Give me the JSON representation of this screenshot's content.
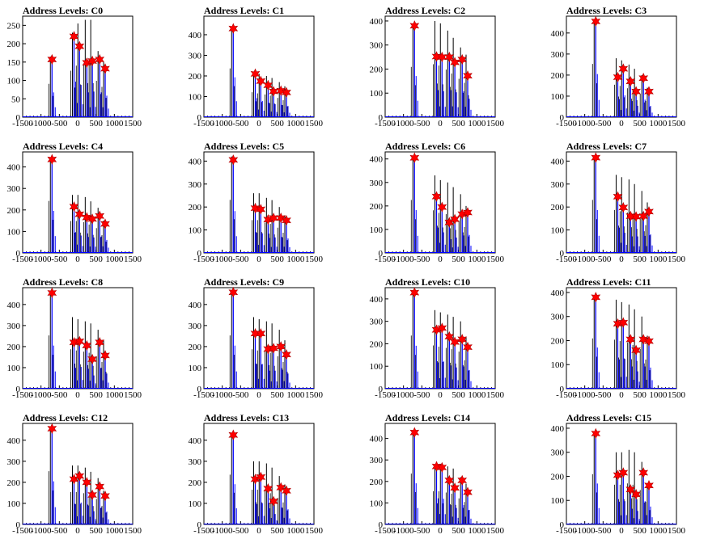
{
  "x_ticks": [
    -1500,
    -1000,
    -500,
    0,
    500,
    1000,
    1500
  ],
  "colors": {
    "black_hist": "#000000",
    "blue_hist": "#0000ff",
    "marker": "#ff0000",
    "frame": "#000000"
  },
  "chart_data": [
    {
      "type": "bar",
      "title": "Address Levels: C0",
      "xlim": [
        -1500,
        1500
      ],
      "ylim": [
        0,
        275
      ],
      "yticks": [
        0,
        50,
        100,
        150,
        200,
        250
      ],
      "peaks_x": [
        -700,
        -100,
        50,
        250,
        400,
        600,
        750
      ],
      "black_heights": [
        165,
        230,
        255,
        265,
        265,
        180,
        150
      ],
      "blue_heights": [
        150,
        215,
        195,
        150,
        155,
        150,
        130
      ],
      "markers": [
        {
          "x": -700,
          "y": 157
        },
        {
          "x": -100,
          "y": 220
        },
        {
          "x": 50,
          "y": 193
        },
        {
          "x": 250,
          "y": 148
        },
        {
          "x": 400,
          "y": 153
        },
        {
          "x": 600,
          "y": 157
        },
        {
          "x": 750,
          "y": 132
        }
      ]
    },
    {
      "type": "bar",
      "title": "Address Levels: C1",
      "xlim": [
        -1500,
        1500
      ],
      "ylim": [
        0,
        490
      ],
      "yticks": [
        0,
        100,
        200,
        300,
        400
      ],
      "peaks_x": [
        -700,
        -100,
        50,
        250,
        400,
        600,
        750
      ],
      "black_heights": [
        430,
        220,
        210,
        200,
        190,
        170,
        150
      ],
      "blue_heights": [
        430,
        205,
        175,
        150,
        140,
        130,
        120
      ],
      "markers": [
        {
          "x": -700,
          "y": 430
        },
        {
          "x": -100,
          "y": 210
        },
        {
          "x": 50,
          "y": 175
        },
        {
          "x": 250,
          "y": 155
        },
        {
          "x": 400,
          "y": 125
        },
        {
          "x": 600,
          "y": 128
        },
        {
          "x": 750,
          "y": 120
        }
      ]
    },
    {
      "type": "bar",
      "title": "Address Levels: C2",
      "xlim": [
        -1500,
        1500
      ],
      "ylim": [
        0,
        420
      ],
      "yticks": [
        0,
        100,
        200,
        300,
        400
      ],
      "peaks_x": [
        -700,
        -100,
        50,
        250,
        400,
        600,
        750
      ],
      "black_heights": [
        380,
        400,
        390,
        360,
        330,
        290,
        260
      ],
      "blue_heights": [
        380,
        250,
        240,
        250,
        230,
        240,
        170
      ],
      "markers": [
        {
          "x": -700,
          "y": 380
        },
        {
          "x": -100,
          "y": 252
        },
        {
          "x": 50,
          "y": 250
        },
        {
          "x": 250,
          "y": 250
        },
        {
          "x": 400,
          "y": 228
        },
        {
          "x": 600,
          "y": 240
        },
        {
          "x": 750,
          "y": 172
        }
      ]
    },
    {
      "type": "bar",
      "title": "Address Levels: C3",
      "xlim": [
        -1500,
        1500
      ],
      "ylim": [
        0,
        480
      ],
      "yticks": [
        0,
        100,
        200,
        300,
        400
      ],
      "peaks_x": [
        -700,
        -100,
        50,
        250,
        400,
        600,
        750
      ],
      "black_heights": [
        460,
        280,
        270,
        250,
        230,
        200,
        140
      ],
      "blue_heights": [
        455,
        190,
        230,
        170,
        120,
        185,
        120
      ],
      "markers": [
        {
          "x": -700,
          "y": 455
        },
        {
          "x": -100,
          "y": 190
        },
        {
          "x": 50,
          "y": 230
        },
        {
          "x": 250,
          "y": 170
        },
        {
          "x": 400,
          "y": 122
        },
        {
          "x": 600,
          "y": 185
        },
        {
          "x": 750,
          "y": 122
        }
      ]
    },
    {
      "type": "bar",
      "title": "Address Levels: C4",
      "xlim": [
        -1500,
        1500
      ],
      "ylim": [
        0,
        470
      ],
      "yticks": [
        0,
        100,
        200,
        300,
        400
      ],
      "peaks_x": [
        -700,
        -100,
        50,
        250,
        400,
        600,
        750
      ],
      "black_heights": [
        440,
        270,
        270,
        260,
        240,
        210,
        150
      ],
      "blue_heights": [
        435,
        215,
        180,
        165,
        160,
        170,
        135
      ],
      "markers": [
        {
          "x": -700,
          "y": 435
        },
        {
          "x": -100,
          "y": 215
        },
        {
          "x": 50,
          "y": 180
        },
        {
          "x": 250,
          "y": 165
        },
        {
          "x": 400,
          "y": 158
        },
        {
          "x": 600,
          "y": 172
        },
        {
          "x": 750,
          "y": 135
        }
      ]
    },
    {
      "type": "bar",
      "title": "Address Levels: C5",
      "xlim": [
        -1500,
        1500
      ],
      "ylim": [
        0,
        440
      ],
      "yticks": [
        0,
        100,
        200,
        300,
        400
      ],
      "peaks_x": [
        -700,
        -100,
        50,
        250,
        400,
        600,
        750
      ],
      "black_heights": [
        420,
        260,
        260,
        240,
        230,
        200,
        160
      ],
      "blue_heights": [
        405,
        195,
        190,
        145,
        150,
        150,
        140
      ],
      "markers": [
        {
          "x": -700,
          "y": 405
        },
        {
          "x": -100,
          "y": 195
        },
        {
          "x": 50,
          "y": 190
        },
        {
          "x": 250,
          "y": 145
        },
        {
          "x": 400,
          "y": 152
        },
        {
          "x": 600,
          "y": 152
        },
        {
          "x": 750,
          "y": 142
        }
      ]
    },
    {
      "type": "bar",
      "title": "Address Levels: C6",
      "xlim": [
        -1500,
        1500
      ],
      "ylim": [
        0,
        430
      ],
      "yticks": [
        0,
        100,
        200,
        300,
        400
      ],
      "peaks_x": [
        -700,
        -100,
        50,
        250,
        400,
        600,
        750
      ],
      "black_heights": [
        410,
        330,
        310,
        300,
        280,
        250,
        200
      ],
      "blue_heights": [
        405,
        240,
        195,
        130,
        145,
        165,
        170
      ],
      "markers": [
        {
          "x": -700,
          "y": 405
        },
        {
          "x": -100,
          "y": 240
        },
        {
          "x": 50,
          "y": 195
        },
        {
          "x": 250,
          "y": 130
        },
        {
          "x": 400,
          "y": 143
        },
        {
          "x": 600,
          "y": 165
        },
        {
          "x": 750,
          "y": 172
        }
      ]
    },
    {
      "type": "bar",
      "title": "Address Levels: C7",
      "xlim": [
        -1500,
        1500
      ],
      "ylim": [
        0,
        440
      ],
      "yticks": [
        0,
        100,
        200,
        300,
        400
      ],
      "peaks_x": [
        -700,
        -100,
        50,
        250,
        400,
        600,
        750
      ],
      "black_heights": [
        420,
        340,
        330,
        320,
        300,
        270,
        220
      ],
      "blue_heights": [
        415,
        245,
        195,
        160,
        160,
        165,
        180
      ],
      "markers": [
        {
          "x": -700,
          "y": 415
        },
        {
          "x": -100,
          "y": 245
        },
        {
          "x": 50,
          "y": 198
        },
        {
          "x": 250,
          "y": 160
        },
        {
          "x": 400,
          "y": 158
        },
        {
          "x": 600,
          "y": 160
        },
        {
          "x": 750,
          "y": 180
        }
      ]
    },
    {
      "type": "bar",
      "title": "Address Levels: C8",
      "xlim": [
        -1500,
        1500
      ],
      "ylim": [
        0,
        480
      ],
      "yticks": [
        0,
        100,
        200,
        300,
        400
      ],
      "peaks_x": [
        -700,
        -100,
        50,
        250,
        400,
        600,
        750
      ],
      "black_heights": [
        460,
        340,
        330,
        320,
        310,
        280,
        230
      ],
      "blue_heights": [
        455,
        220,
        230,
        210,
        140,
        220,
        160
      ],
      "markers": [
        {
          "x": -700,
          "y": 455
        },
        {
          "x": -100,
          "y": 220
        },
        {
          "x": 50,
          "y": 225
        },
        {
          "x": 250,
          "y": 205
        },
        {
          "x": 400,
          "y": 140
        },
        {
          "x": 600,
          "y": 220
        },
        {
          "x": 750,
          "y": 158
        }
      ]
    },
    {
      "type": "bar",
      "title": "Address Levels: C9",
      "xlim": [
        -1500,
        1500
      ],
      "ylim": [
        0,
        480
      ],
      "yticks": [
        0,
        100,
        200,
        300,
        400
      ],
      "peaks_x": [
        -700,
        -100,
        50,
        250,
        400,
        600,
        750
      ],
      "black_heights": [
        460,
        340,
        330,
        320,
        310,
        280,
        230
      ],
      "blue_heights": [
        455,
        260,
        260,
        190,
        190,
        200,
        160
      ],
      "markers": [
        {
          "x": -700,
          "y": 458
        },
        {
          "x": -100,
          "y": 262
        },
        {
          "x": 50,
          "y": 262
        },
        {
          "x": 250,
          "y": 188
        },
        {
          "x": 400,
          "y": 192
        },
        {
          "x": 600,
          "y": 200
        },
        {
          "x": 750,
          "y": 162
        }
      ]
    },
    {
      "type": "bar",
      "title": "Address Levels: C10",
      "xlim": [
        -1500,
        1500
      ],
      "ylim": [
        0,
        450
      ],
      "yticks": [
        0,
        100,
        200,
        300,
        400
      ],
      "peaks_x": [
        -700,
        -100,
        50,
        250,
        400,
        600,
        750
      ],
      "black_heights": [
        430,
        350,
        340,
        330,
        320,
        300,
        230
      ],
      "blue_heights": [
        425,
        260,
        270,
        230,
        210,
        220,
        185
      ],
      "markers": [
        {
          "x": -700,
          "y": 428
        },
        {
          "x": -100,
          "y": 262
        },
        {
          "x": 50,
          "y": 270
        },
        {
          "x": 250,
          "y": 232
        },
        {
          "x": 400,
          "y": 208
        },
        {
          "x": 600,
          "y": 220
        },
        {
          "x": 750,
          "y": 185
        }
      ]
    },
    {
      "type": "bar",
      "title": "Address Levels: C11",
      "xlim": [
        -1500,
        1500
      ],
      "ylim": [
        0,
        420
      ],
      "yticks": [
        0,
        100,
        200,
        300,
        400
      ],
      "peaks_x": [
        -700,
        -100,
        50,
        250,
        400,
        600,
        750
      ],
      "black_heights": [
        380,
        370,
        360,
        350,
        330,
        300,
        220
      ],
      "blue_heights": [
        380,
        270,
        275,
        205,
        160,
        205,
        195
      ],
      "markers": [
        {
          "x": -700,
          "y": 380
        },
        {
          "x": -100,
          "y": 270
        },
        {
          "x": 50,
          "y": 275
        },
        {
          "x": 250,
          "y": 205
        },
        {
          "x": 400,
          "y": 160
        },
        {
          "x": 600,
          "y": 205
        },
        {
          "x": 750,
          "y": 198
        }
      ]
    },
    {
      "type": "bar",
      "title": "Address Levels: C12",
      "xlim": [
        -1500,
        1500
      ],
      "ylim": [
        0,
        480
      ],
      "yticks": [
        0,
        100,
        200,
        300,
        400
      ],
      "peaks_x": [
        -700,
        -100,
        50,
        250,
        400,
        600,
        750
      ],
      "black_heights": [
        460,
        280,
        280,
        270,
        250,
        220,
        160
      ],
      "blue_heights": [
        455,
        215,
        230,
        200,
        140,
        180,
        135
      ],
      "markers": [
        {
          "x": -700,
          "y": 455
        },
        {
          "x": -100,
          "y": 215
        },
        {
          "x": 50,
          "y": 230
        },
        {
          "x": 250,
          "y": 200
        },
        {
          "x": 400,
          "y": 140
        },
        {
          "x": 600,
          "y": 180
        },
        {
          "x": 750,
          "y": 135
        }
      ]
    },
    {
      "type": "bar",
      "title": "Address Levels: C13",
      "xlim": [
        -1500,
        1500
      ],
      "ylim": [
        0,
        480
      ],
      "yticks": [
        0,
        100,
        200,
        300,
        400
      ],
      "peaks_x": [
        -700,
        -100,
        50,
        250,
        400,
        600,
        750
      ],
      "black_heights": [
        430,
        300,
        300,
        290,
        270,
        230,
        190
      ],
      "blue_heights": [
        425,
        215,
        225,
        170,
        110,
        175,
        160
      ],
      "markers": [
        {
          "x": -700,
          "y": 425
        },
        {
          "x": -100,
          "y": 215
        },
        {
          "x": 50,
          "y": 225
        },
        {
          "x": 250,
          "y": 170
        },
        {
          "x": 400,
          "y": 110
        },
        {
          "x": 600,
          "y": 175
        },
        {
          "x": 750,
          "y": 160
        }
      ]
    },
    {
      "type": "bar",
      "title": "Address Levels: C14",
      "xlim": [
        -1500,
        1500
      ],
      "ylim": [
        0,
        470
      ],
      "yticks": [
        0,
        100,
        200,
        300,
        400
      ],
      "peaks_x": [
        -700,
        -100,
        50,
        250,
        400,
        600,
        750
      ],
      "black_heights": [
        430,
        280,
        280,
        270,
        260,
        220,
        190
      ],
      "blue_heights": [
        425,
        270,
        265,
        200,
        170,
        200,
        150
      ],
      "markers": [
        {
          "x": -700,
          "y": 428
        },
        {
          "x": -100,
          "y": 270
        },
        {
          "x": 50,
          "y": 265
        },
        {
          "x": 250,
          "y": 205
        },
        {
          "x": 400,
          "y": 170
        },
        {
          "x": 600,
          "y": 205
        },
        {
          "x": 750,
          "y": 150
        }
      ]
    },
    {
      "type": "bar",
      "title": "Address Levels: C15",
      "xlim": [
        -1500,
        1500
      ],
      "ylim": [
        0,
        420
      ],
      "yticks": [
        0,
        100,
        200,
        300,
        400
      ],
      "peaks_x": [
        -700,
        -100,
        50,
        250,
        400,
        600,
        750
      ],
      "black_heights": [
        380,
        300,
        300,
        310,
        300,
        260,
        170
      ],
      "blue_heights": [
        378,
        210,
        215,
        145,
        125,
        215,
        165
      ],
      "markers": [
        {
          "x": -700,
          "y": 378
        },
        {
          "x": -100,
          "y": 205
        },
        {
          "x": 50,
          "y": 215
        },
        {
          "x": 250,
          "y": 145
        },
        {
          "x": 400,
          "y": 125
        },
        {
          "x": 600,
          "y": 215
        },
        {
          "x": 750,
          "y": 162
        }
      ]
    }
  ]
}
